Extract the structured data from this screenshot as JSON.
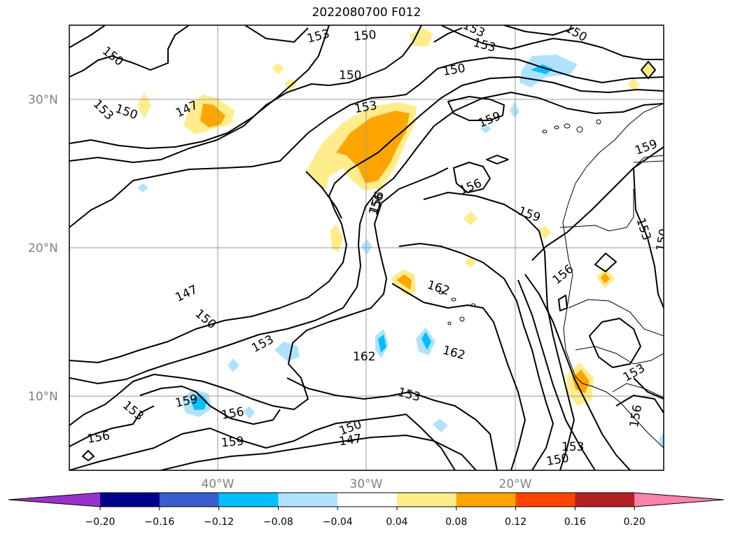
{
  "title": "2022080700 F012",
  "lat_labels": [
    "30°N",
    "20°N",
    "10°N"
  ],
  "lon_labels": [
    "40°W",
    "30°W",
    "20°W"
  ],
  "colorbar": {
    "ticks": [
      "−0.20",
      "−0.16",
      "−0.12",
      "−0.08",
      "−0.04",
      "0.04",
      "0.08",
      "0.12",
      "0.16",
      "0.20"
    ],
    "colors": [
      "#9932cc",
      "#00008b",
      "#3a5fcd",
      "#00bfff",
      "#b0e2ff",
      "#ffffff",
      "#ffec8b",
      "#ffa500",
      "#ff4500",
      "#b22222",
      "#ff82ab"
    ]
  },
  "contour_labels": [
    "150",
    "153",
    "150",
    "153",
    "150",
    "147",
    "150",
    "153",
    "153",
    "150",
    "153",
    "156",
    "150",
    "159",
    "156",
    "159",
    "159",
    "153",
    "150",
    "156",
    "147",
    "150",
    "153",
    "156",
    "162",
    "162",
    "162",
    "153",
    "153",
    "153",
    "159",
    "156",
    "153",
    "156",
    "147",
    "150",
    "159",
    "156",
    "153",
    "150"
  ],
  "shading_colors": {
    "pos_light": "#ffec8b",
    "pos_mid": "#ffa500",
    "neg_light": "#b0e2ff",
    "neg_mid": "#00bfff"
  }
}
